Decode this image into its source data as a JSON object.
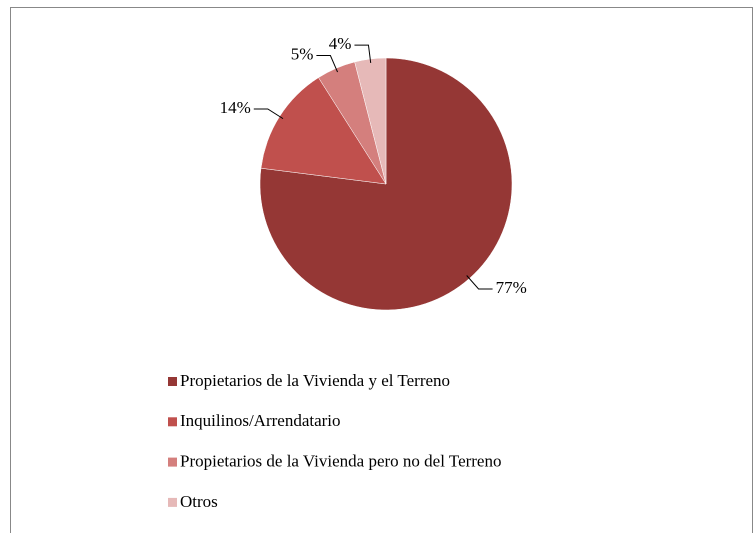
{
  "chart_data": {
    "type": "pie",
    "categories": [
      "Propietarios de la Vivienda y el Terreno",
      "Inquilinos/Arrendatario",
      "Propietarios de la Vivienda pero no del Terreno",
      "Otros"
    ],
    "values": [
      77,
      14,
      5,
      4
    ],
    "value_labels": [
      "77%",
      "14%",
      "5%",
      "4%"
    ],
    "colors": [
      "#953735",
      "#c0504d",
      "#d47f7d",
      "#e6b9b8"
    ],
    "legend": "bottom"
  }
}
